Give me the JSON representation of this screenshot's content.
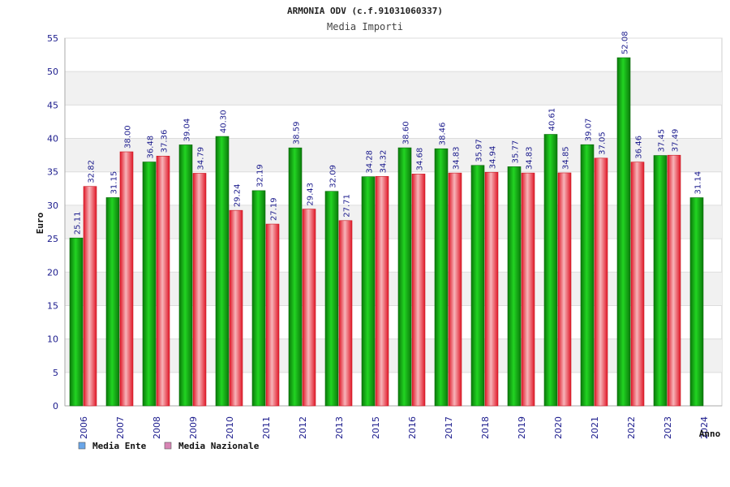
{
  "chart_data": {
    "type": "bar",
    "title": "ARMONIA ODV (c.f.91031060337)",
    "subtitle": "Media Importi",
    "xlabel": "Anno",
    "ylabel": "Euro",
    "ylim": [
      0,
      55
    ],
    "yticks": [
      0,
      5,
      10,
      15,
      20,
      25,
      30,
      35,
      40,
      45,
      50,
      55
    ],
    "grid": true,
    "legend_position": "bottom-left",
    "categories": [
      "2006",
      "2007",
      "2008",
      "2009",
      "2010",
      "2011",
      "2012",
      "2013",
      "2015",
      "2016",
      "2017",
      "2018",
      "2019",
      "2020",
      "2021",
      "2022",
      "2023",
      "2024"
    ],
    "series": [
      {
        "name": "Media Ente",
        "color": "#16b516",
        "legend_color": "#6aa6e8",
        "values": [
          25.11,
          31.15,
          36.48,
          39.04,
          40.3,
          32.19,
          38.59,
          32.09,
          34.28,
          38.6,
          38.46,
          35.97,
          35.77,
          40.61,
          39.07,
          52.08,
          37.45,
          31.14
        ],
        "labels": [
          "25.11",
          "31.15",
          "36.48",
          "39.04",
          "40.30",
          "32.19",
          "38.59",
          "32.09",
          "34.28",
          "38.60",
          "38.46",
          "35.97",
          "35.77",
          "40.61",
          "39.07",
          "52.08",
          "37.45",
          "31.14"
        ]
      },
      {
        "name": "Media Nazionale",
        "color": "#e8323c",
        "legend_color": "#d884b4",
        "values": [
          32.82,
          38.0,
          37.36,
          34.79,
          29.24,
          27.19,
          29.43,
          27.71,
          34.32,
          34.68,
          34.83,
          34.94,
          34.83,
          34.85,
          37.05,
          36.46,
          37.49,
          null
        ],
        "labels": [
          "32.82",
          "38.00",
          "37.36",
          "34.79",
          "29.24",
          "27.19",
          "29.43",
          "27.71",
          "34.32",
          "34.68",
          "34.83",
          "34.94",
          "34.83",
          "34.85",
          "37.05",
          "36.46",
          "37.49",
          null
        ]
      }
    ]
  }
}
